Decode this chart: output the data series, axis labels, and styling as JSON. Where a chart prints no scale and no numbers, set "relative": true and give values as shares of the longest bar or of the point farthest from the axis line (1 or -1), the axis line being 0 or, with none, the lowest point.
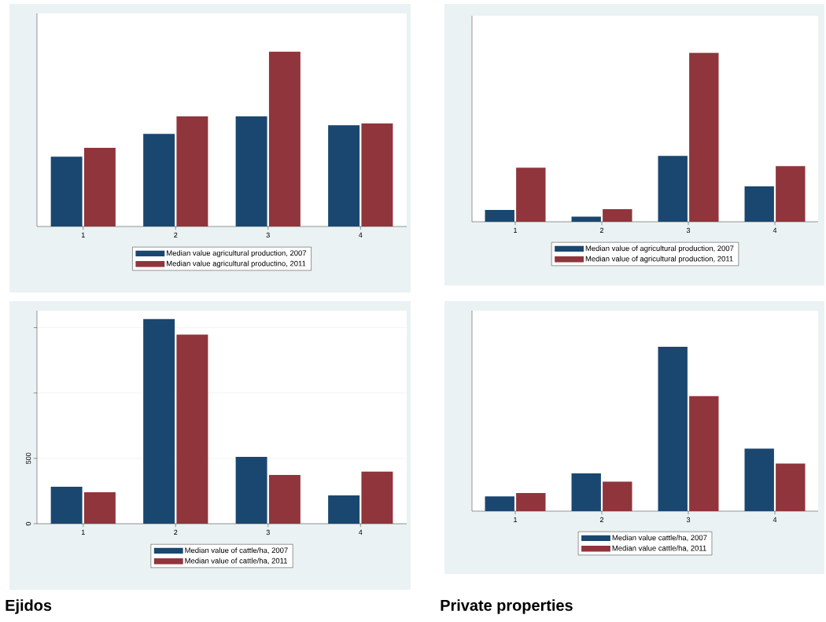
{
  "chart_data": [
    {
      "type": "bar",
      "categories": [
        "1",
        "2",
        "3",
        "4"
      ],
      "relative": true,
      "legend": "bottom",
      "series": [
        {
          "name": "Median value agricultural production, 2007",
          "color": "#1a476f",
          "values": [
            0.4,
            0.53,
            0.63,
            0.58
          ]
        },
        {
          "name": "Median value agricultural productino, 2011",
          "color": "#90353b",
          "values": [
            0.45,
            0.63,
            1,
            0.59
          ]
        }
      ]
    },
    {
      "type": "bar",
      "categories": [
        "1",
        "2",
        "3",
        "4"
      ],
      "relative": true,
      "legend": "bottom",
      "series": [
        {
          "name": "Median value of agricultural production, 2007",
          "color": "#1a476f",
          "values": [
            0.07,
            0.03,
            0.39,
            0.21
          ]
        },
        {
          "name": "Median value of agricultural production, 2011",
          "color": "#90353b",
          "values": [
            0.32,
            0.075,
            1,
            0.33
          ]
        }
      ]
    },
    {
      "type": "bar",
      "categories": [
        "1",
        "2",
        "3",
        "4"
      ],
      "ylim": [
        0,
        1630
      ],
      "yticks": [
        0,
        500,
        {
          "value": 1000,
          "label": null
        },
        {
          "value": 1500,
          "label": null
        }
      ],
      "grid": "y",
      "legend": "bottom",
      "annotations": [
        "Ejidos"
      ],
      "series": [
        {
          "name": "Median value of cattle/ha, 2007",
          "color": "#1a476f",
          "values": [
            283,
            1566,
            512,
            217
          ]
        },
        {
          "name": "Median value of cattle/ha, 2011",
          "color": "#90353b",
          "values": [
            241,
            1446,
            373,
            398
          ]
        }
      ]
    },
    {
      "type": "bar",
      "categories": [
        "1",
        "2",
        "3",
        "4"
      ],
      "relative": true,
      "legend": "bottom",
      "annotations": [
        "Private properties"
      ],
      "series": [
        {
          "name": "Median value cattle/ha, 2007",
          "color": "#1a476f",
          "values": [
            0.09,
            0.23,
            1,
            0.38
          ]
        },
        {
          "name": "Median value cattle/ha, 2011",
          "color": "#90353b",
          "values": [
            0.11,
            0.18,
            0.7,
            0.29
          ]
        }
      ]
    }
  ]
}
